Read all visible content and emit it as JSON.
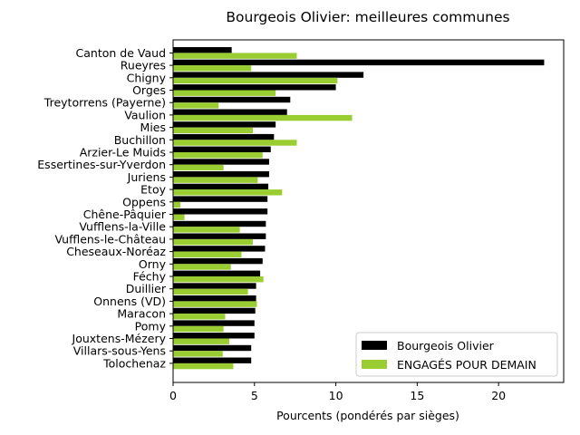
{
  "chart_data": {
    "type": "bar",
    "orientation": "horizontal",
    "title": "Bourgeois Olivier: meilleures communes",
    "xlabel": "Pourcents (pondérés par sièges)",
    "ylabel": "",
    "xlim": [
      0,
      24
    ],
    "xticks": [
      "0",
      "5",
      "10",
      "15",
      "20"
    ],
    "legend_position": "lower-right",
    "categories": [
      "Canton de Vaud",
      "Rueyres",
      "Chigny",
      "Orges",
      "Treytorrens (Payerne)",
      "Vaulion",
      "Mies",
      "Buchillon",
      "Arzier-Le Muids",
      "Essertines-sur-Yverdon",
      "Juriens",
      "Etoy",
      "Oppens",
      "Chêne-Pâquier",
      "Vufflens-la-Ville",
      "Vufflens-le-Château",
      "Cheseaux-Noréaz",
      "Orny",
      "Féchy",
      "Duillier",
      "Onnens (VD)",
      "Maracon",
      "Pomy",
      "Jouxtens-Mézery",
      "Villars-sous-Yens",
      "Tolochenaz"
    ],
    "series": [
      {
        "name": "Bourgeois Olivier",
        "color": "#000000",
        "values": [
          3.6,
          22.8,
          11.7,
          10.0,
          7.2,
          7.0,
          6.3,
          6.2,
          6.0,
          5.9,
          5.9,
          5.85,
          5.8,
          5.8,
          5.7,
          5.7,
          5.65,
          5.5,
          5.35,
          5.1,
          5.1,
          5.05,
          5.0,
          5.0,
          4.8,
          4.8
        ]
      },
      {
        "name": "ENGAGÉS POUR DEMAIN",
        "color": "#9acd32",
        "values": [
          7.6,
          4.8,
          10.1,
          6.3,
          2.8,
          11.0,
          4.9,
          7.6,
          5.5,
          3.1,
          5.2,
          6.7,
          0.45,
          0.7,
          4.1,
          4.9,
          4.2,
          3.55,
          5.55,
          4.6,
          5.15,
          3.2,
          3.1,
          3.45,
          3.05,
          3.7
        ]
      }
    ]
  }
}
